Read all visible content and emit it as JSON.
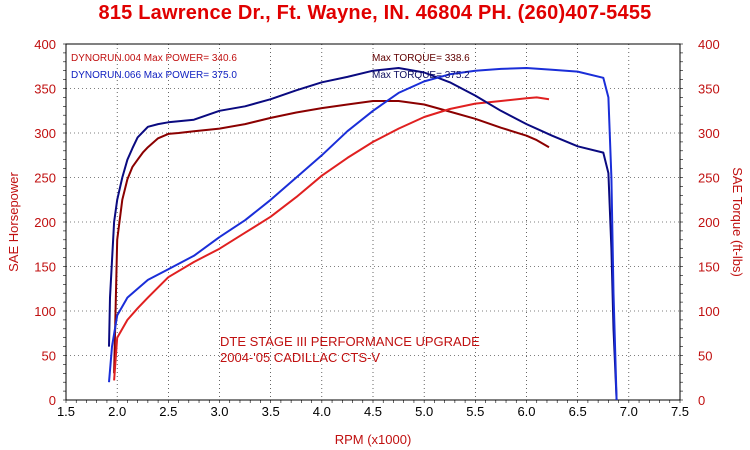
{
  "header": {
    "text": "815 Lawrence Dr., Ft. Wayne, IN. 46804  PH. (260)407-5455"
  },
  "chart_data": {
    "type": "line",
    "xlabel": "RPM (x1000)",
    "ylabel_left": "SAE Horsepower",
    "ylabel_right": "SAE Torque (ft-lbs)",
    "xlim": [
      1.5,
      7.5
    ],
    "ylim": [
      0,
      400
    ],
    "x_ticks": [
      "1.5",
      "2.0",
      "2.5",
      "3.0",
      "3.5",
      "4.0",
      "4.5",
      "5.0",
      "5.5",
      "6.0",
      "6.5",
      "7.0",
      "7.5"
    ],
    "y_ticks": [
      "0",
      "50",
      "100",
      "150",
      "200",
      "250",
      "300",
      "350",
      "400"
    ],
    "grid": true,
    "annotations": [
      {
        "id": "run1-power",
        "text": "DYNORUN.004  Max POWER= 340.6",
        "color": "#c01010"
      },
      {
        "id": "run2-power",
        "text": "DYNORUN.066  Max POWER= 375.0",
        "color": "#1020c0"
      },
      {
        "id": "run1-torque",
        "text": "Max TORQUE= 338.6",
        "color": "#600000"
      },
      {
        "id": "run2-torque",
        "text": "Max TORQUE= 375.2",
        "color": "#101060"
      }
    ],
    "captions": [
      "DTE STAGE III PERFORMANCE UPGRADE",
      "2004-'05 CADILLAC CTS-V"
    ],
    "series": [
      {
        "kind": "torque",
        "color": "#8b0000",
        "x": [
          1.97,
          2.0,
          2.05,
          2.1,
          2.15,
          2.2,
          2.25,
          2.3,
          2.4,
          2.5,
          2.6,
          2.75,
          3.0,
          3.25,
          3.5,
          3.75,
          4.0,
          4.25,
          4.5,
          4.75,
          5.0,
          5.25,
          5.5,
          5.75,
          6.0,
          6.1,
          6.22
        ],
        "y": [
          30,
          180,
          225,
          248,
          262,
          270,
          278,
          284,
          294,
          299,
          300,
          302,
          305,
          310,
          317,
          323,
          328,
          332,
          336,
          336,
          332,
          324,
          316,
          306,
          297,
          292,
          284
        ]
      },
      {
        "kind": "horsepower",
        "color": "#e02020",
        "x": [
          1.97,
          2.0,
          2.1,
          2.2,
          2.3,
          2.5,
          2.75,
          3.0,
          3.25,
          3.5,
          3.75,
          4.0,
          4.25,
          4.5,
          4.75,
          5.0,
          5.25,
          5.5,
          5.75,
          6.0,
          6.1,
          6.22
        ],
        "y": [
          22,
          70,
          90,
          103,
          115,
          138,
          155,
          170,
          188,
          206,
          228,
          252,
          272,
          290,
          305,
          318,
          327,
          333,
          336,
          339,
          340,
          338
        ]
      },
      {
        "kind": "torque",
        "color": "#0a0a80",
        "x": [
          1.92,
          1.93,
          1.97,
          2.0,
          2.05,
          2.1,
          2.15,
          2.2,
          2.3,
          2.4,
          2.5,
          2.75,
          3.0,
          3.25,
          3.5,
          3.75,
          4.0,
          4.25,
          4.5,
          4.75,
          5.0,
          5.25,
          5.5,
          5.75,
          6.0,
          6.25,
          6.5,
          6.75,
          6.8,
          6.83,
          6.85,
          6.88
        ],
        "y": [
          60,
          115,
          200,
          225,
          250,
          270,
          283,
          295,
          307,
          310,
          312,
          315,
          325,
          330,
          338,
          348,
          357,
          363,
          370,
          373,
          368,
          357,
          342,
          325,
          310,
          297,
          285,
          278,
          255,
          170,
          80,
          0
        ]
      },
      {
        "kind": "horsepower",
        "color": "#1a2ed8",
        "x": [
          1.92,
          1.95,
          2.0,
          2.1,
          2.2,
          2.3,
          2.5,
          2.75,
          3.0,
          3.25,
          3.5,
          3.75,
          4.0,
          4.25,
          4.5,
          4.75,
          5.0,
          5.25,
          5.5,
          5.75,
          6.0,
          6.25,
          6.5,
          6.75,
          6.8,
          6.83,
          6.85,
          6.88
        ],
        "y": [
          20,
          60,
          95,
          115,
          125,
          135,
          147,
          162,
          183,
          202,
          225,
          250,
          275,
          302,
          325,
          345,
          358,
          366,
          370,
          372,
          373,
          371,
          369,
          362,
          340,
          250,
          120,
          0
        ]
      }
    ]
  }
}
